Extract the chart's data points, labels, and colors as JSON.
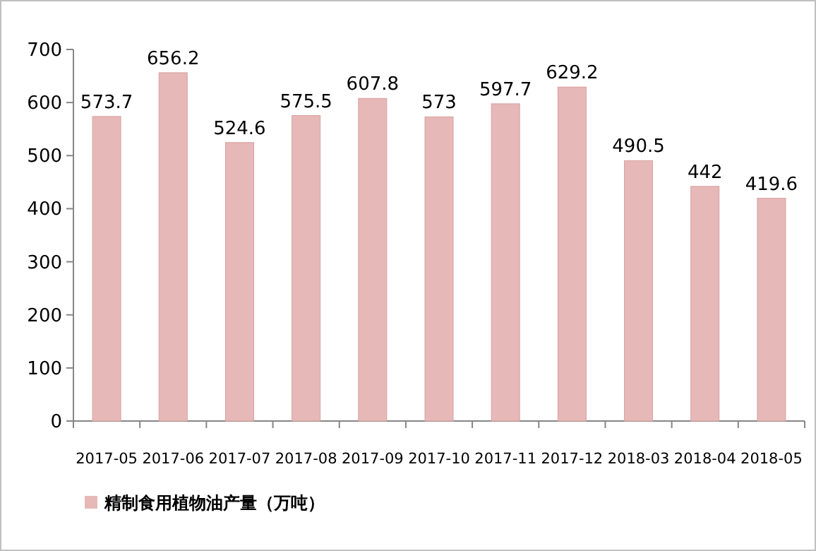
{
  "chart_data": {
    "type": "bar",
    "categories": [
      "2017-05",
      "2017-06",
      "2017-07",
      "2017-08",
      "2017-09",
      "2017-10",
      "2017-11",
      "2017-12",
      "2018-03",
      "2018-04",
      "2018-05"
    ],
    "series": [
      {
        "name": "精制食用植物油产量（万吨）",
        "color": "#e6b8b7",
        "values": [
          573.7,
          656.2,
          524.6,
          575.5,
          607.8,
          573,
          597.7,
          629.2,
          490.5,
          442,
          419.6
        ]
      }
    ],
    "ylim": [
      0,
      700
    ],
    "yticks": [
      0,
      100,
      200,
      300,
      400,
      500,
      600,
      700
    ],
    "data_labels": true,
    "legend": "bottom left"
  }
}
